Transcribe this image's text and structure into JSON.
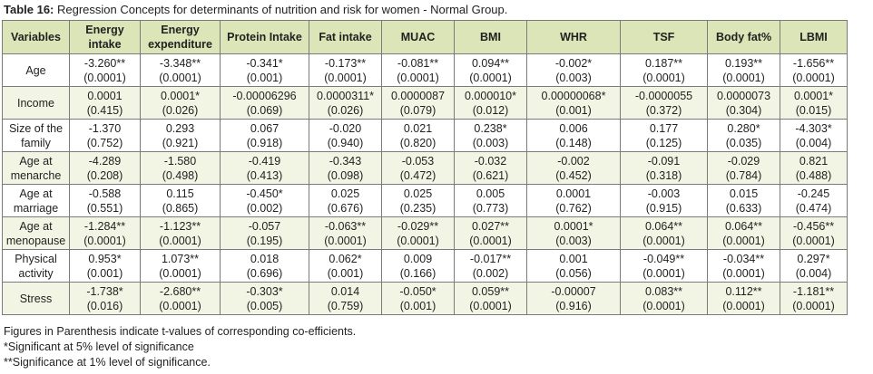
{
  "caption": {
    "label": "Table 16:",
    "text": " Regression Concepts for determinants of nutrition and risk for women - Normal Group."
  },
  "columns": [
    [
      "Variables"
    ],
    [
      "Energy",
      "intake"
    ],
    [
      "Energy",
      "expenditure"
    ],
    [
      "Protein Intake"
    ],
    [
      "Fat intake"
    ],
    [
      "MUAC"
    ],
    [
      "BMI"
    ],
    [
      "WHR"
    ],
    [
      "TSF"
    ],
    [
      "Body fat%"
    ],
    [
      "LBMI"
    ]
  ],
  "rows": [
    {
      "label": [
        "Age"
      ],
      "cells": [
        [
          "-3.260**",
          "(0.0001)"
        ],
        [
          "-3.348**",
          "(0.0001)"
        ],
        [
          "-0.341*",
          "(0.001)"
        ],
        [
          "-0.173**",
          "(0.0001)"
        ],
        [
          "-0.081**",
          "(0.0001)"
        ],
        [
          "0.094**",
          "(0.0001)"
        ],
        [
          "-0.002*",
          "(0.003)"
        ],
        [
          "0.187**",
          "(0.0001)"
        ],
        [
          "0.193**",
          "(0.0001)"
        ],
        [
          "-1.656**",
          "(0.0001)"
        ]
      ]
    },
    {
      "label": [
        "Income"
      ],
      "cells": [
        [
          "0.0001",
          "(0.415)"
        ],
        [
          "0.0001*",
          "(0.026)"
        ],
        [
          "-0.00006296",
          "(0.069)"
        ],
        [
          "0.0000311*",
          "(0.026)"
        ],
        [
          "0.0000087",
          "(0.079)"
        ],
        [
          "0.000010*",
          "(0.012)"
        ],
        [
          "0.00000068*",
          "(0.001)"
        ],
        [
          "-0.0000055",
          "(0.372)"
        ],
        [
          "0.0000073",
          "(0.304)"
        ],
        [
          "0.0001*",
          "(0.015)"
        ]
      ]
    },
    {
      "label": [
        "Size of the",
        "family"
      ],
      "cells": [
        [
          "-1.370",
          "(0.752)"
        ],
        [
          "0.293",
          "(0.921)"
        ],
        [
          "0.067",
          "(0.918)"
        ],
        [
          "-0.020",
          "(0.940)"
        ],
        [
          "0.021",
          "(0.820)"
        ],
        [
          "0.238*",
          "(0.003)"
        ],
        [
          "0.006",
          "(0.148)"
        ],
        [
          "0.177",
          "(0.125)"
        ],
        [
          "0.280*",
          "(0.035)"
        ],
        [
          "-4.303*",
          "(0.004)"
        ]
      ]
    },
    {
      "label": [
        "Age at",
        "menarche"
      ],
      "cells": [
        [
          "-4.289",
          "(0.208)"
        ],
        [
          "-1.580",
          "(0.498)"
        ],
        [
          "-0.419",
          "(0.413)"
        ],
        [
          "-0.343",
          "(0.098)"
        ],
        [
          "-0.053",
          "(0.472)"
        ],
        [
          "-0.032",
          "(0.621)"
        ],
        [
          "-0.002",
          "(0.452)"
        ],
        [
          "-0.091",
          "(0.318)"
        ],
        [
          "-0.029",
          "(0.784)"
        ],
        [
          "0.821",
          "(0.488)"
        ]
      ]
    },
    {
      "label": [
        "Age at",
        "marriage"
      ],
      "cells": [
        [
          "-0.588",
          "(0.551)"
        ],
        [
          "0.115",
          "(0.865)"
        ],
        [
          "-0.450*",
          "(0.002)"
        ],
        [
          "0.025",
          "(0.676)"
        ],
        [
          "0.025",
          "(0.235)"
        ],
        [
          "0.005",
          "(0.773)"
        ],
        [
          "0.0001",
          "(0.762)"
        ],
        [
          "-0.003",
          "(0.915)"
        ],
        [
          "0.015",
          "(0.633)"
        ],
        [
          "-0.245",
          "(0.474)"
        ]
      ]
    },
    {
      "label": [
        "Age at",
        "menopause"
      ],
      "cells": [
        [
          "-1.284**",
          "(0.0001)"
        ],
        [
          "-1.123**",
          "(0.0001)"
        ],
        [
          "-0.057",
          "(0.195)"
        ],
        [
          "-0.063**",
          "(0.0001)"
        ],
        [
          "-0.029**",
          "(0.0001)"
        ],
        [
          "0.027**",
          "(0.0001)"
        ],
        [
          "0.0001*",
          "(0.003)"
        ],
        [
          "0.064**",
          "(0.0001)"
        ],
        [
          "0.064**",
          "(0.0001)"
        ],
        [
          "-0.456**",
          "(0.0001)"
        ]
      ]
    },
    {
      "label": [
        "Physical",
        "activity"
      ],
      "cells": [
        [
          "0.953*",
          "(0.001)"
        ],
        [
          "1.073**",
          "(0.0001)"
        ],
        [
          "0.018",
          "(0.696)"
        ],
        [
          "0.062*",
          "(0.001)"
        ],
        [
          "0.009",
          "(0.166)"
        ],
        [
          "-0.017**",
          "(0.002)"
        ],
        [
          "0.001",
          "(0.056)"
        ],
        [
          "-0.049**",
          "(0.0001)"
        ],
        [
          "-0.034**",
          "(0.0001)"
        ],
        [
          "0.297*",
          "(0.004)"
        ]
      ]
    },
    {
      "label": [
        "Stress"
      ],
      "cells": [
        [
          "-1.738*",
          "(0.016)"
        ],
        [
          "-2.680**",
          "(0.0001)"
        ],
        [
          "-0.303*",
          "(0.005)"
        ],
        [
          "0.014",
          "(0.759)"
        ],
        [
          "-0.050*",
          "(0.001)"
        ],
        [
          "0.059**",
          "(0.0001)"
        ],
        [
          "-0.00007",
          "(0.916)"
        ],
        [
          "0.083**",
          "(0.0001)"
        ],
        [
          "0.112**",
          "(0.0001)"
        ],
        [
          "-1.181**",
          "(0.0001)"
        ]
      ]
    }
  ],
  "notes": [
    "Figures in Parenthesis indicate t-values of corresponding co-efficients.",
    "*Significant at 5% level of significance",
    "**Significance at 1% level of significance."
  ],
  "colors": {
    "header_bg": "#dbe5b7",
    "row_alt_bg": "#f2f5e3",
    "border": "#7a7a7a"
  }
}
